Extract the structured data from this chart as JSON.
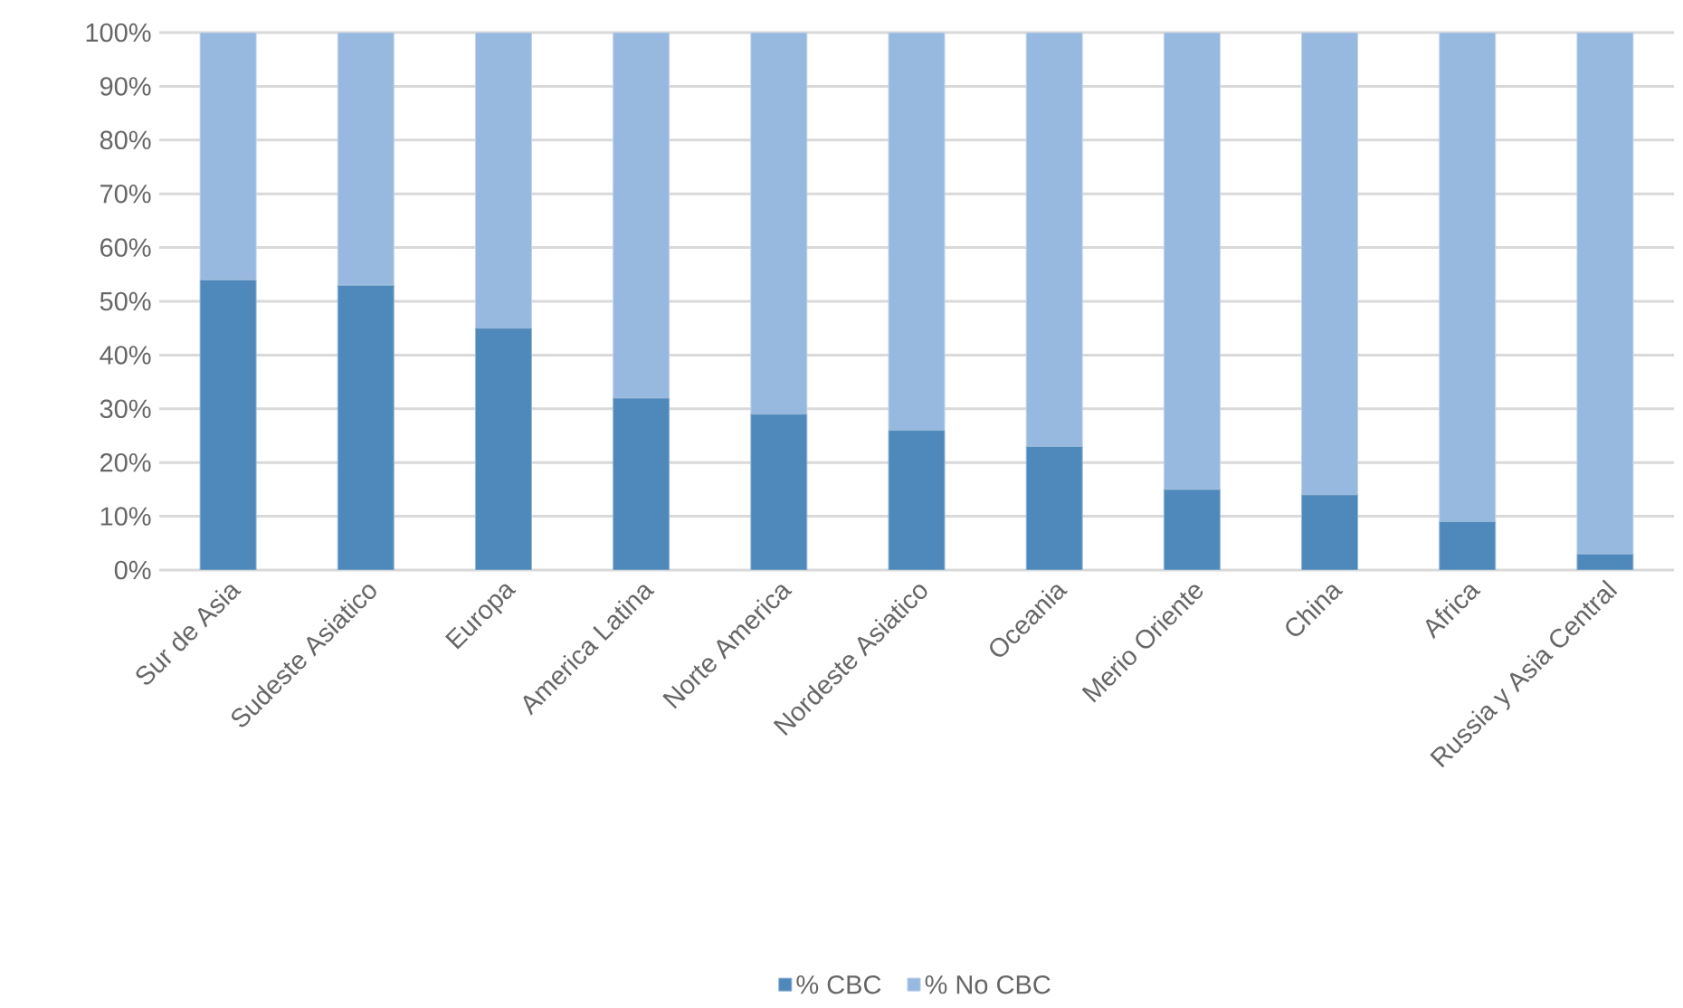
{
  "chart_data": {
    "type": "bar",
    "stacked": true,
    "categories": [
      "Sur de Asia",
      "Sudeste Asiatico",
      "Europa",
      "America Latina",
      "Norte America",
      "Nordeste Asiatico",
      "Oceania",
      "Merio Oriente",
      "China",
      "Africa",
      "Russia y Asia Central"
    ],
    "series": [
      {
        "name": "% CBC",
        "color": "#4f88bb",
        "values": [
          54,
          53,
          45,
          32,
          29,
          26,
          23,
          15,
          14,
          9,
          3
        ]
      },
      {
        "name": "% No CBC",
        "color": "#97b8df",
        "values": [
          46,
          47,
          55,
          68,
          71,
          74,
          77,
          85,
          86,
          91,
          97
        ]
      }
    ],
    "ylim": [
      0,
      100
    ],
    "yticks": [
      {
        "value": 0,
        "label": "0%"
      },
      {
        "value": 10,
        "label": "10%"
      },
      {
        "value": 20,
        "label": "20%"
      },
      {
        "value": 30,
        "label": "30%"
      },
      {
        "value": 40,
        "label": "40%"
      },
      {
        "value": 50,
        "label": "50%"
      },
      {
        "value": 60,
        "label": "60%"
      },
      {
        "value": 70,
        "label": "70%"
      },
      {
        "value": 80,
        "label": "80%"
      },
      {
        "value": 90,
        "label": "90%"
      },
      {
        "value": 100,
        "label": "100%"
      }
    ],
    "grid": "y",
    "legend": "bottom"
  }
}
